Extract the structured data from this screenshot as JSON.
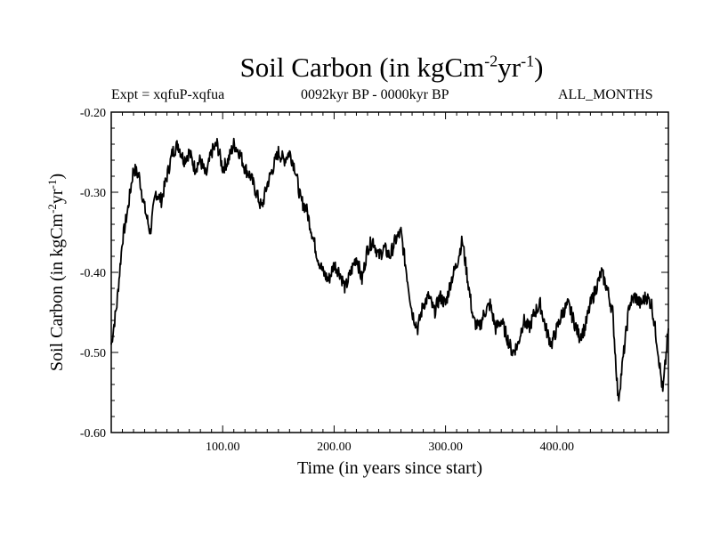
{
  "header": {
    "title_main": "Soil Carbon (in kgCm",
    "title_sup1": "-2",
    "title_mid": "yr",
    "title_sup2": "-1",
    "title_end": ")",
    "expt": "Expt = xqfuP-xqfua",
    "period": "0092kyr BP - 0000kyr BP",
    "months": "ALL_MONTHS"
  },
  "chart_data": {
    "type": "line",
    "title": "Soil Carbon (in kgCm-2yr-1)",
    "xlabel": "Time (in years since start)",
    "ylabel": "Soil Carbon (in kgCm-2yr-1)",
    "xlim": [
      0,
      500
    ],
    "ylim": [
      -0.6,
      -0.2
    ],
    "xticks": [
      100,
      200,
      300,
      400
    ],
    "xtick_labels": [
      "100.00",
      "200.00",
      "300.00",
      "400.00"
    ],
    "yticks": [
      -0.6,
      -0.5,
      -0.4,
      -0.3,
      -0.2
    ],
    "ytick_labels": [
      "-0.60",
      "-0.50",
      "-0.40",
      "-0.30",
      "-0.20"
    ],
    "series": [
      {
        "name": "xqfuP-xqfua",
        "x": [
          0,
          5,
          10,
          15,
          20,
          25,
          30,
          35,
          40,
          45,
          50,
          55,
          60,
          65,
          70,
          75,
          80,
          85,
          90,
          95,
          100,
          105,
          110,
          115,
          120,
          125,
          130,
          135,
          140,
          145,
          150,
          155,
          160,
          165,
          170,
          175,
          180,
          185,
          190,
          195,
          200,
          205,
          210,
          215,
          220,
          225,
          230,
          235,
          240,
          245,
          250,
          255,
          260,
          265,
          270,
          275,
          280,
          285,
          290,
          295,
          300,
          305,
          310,
          315,
          320,
          325,
          330,
          335,
          340,
          345,
          350,
          355,
          360,
          365,
          370,
          375,
          380,
          385,
          390,
          395,
          400,
          405,
          410,
          415,
          420,
          425,
          430,
          435,
          440,
          445,
          450,
          455,
          460,
          465,
          470,
          475,
          480,
          485,
          490,
          495,
          500
        ],
        "values": [
          -0.49,
          -0.44,
          -0.36,
          -0.32,
          -0.27,
          -0.28,
          -0.32,
          -0.35,
          -0.3,
          -0.31,
          -0.28,
          -0.25,
          -0.24,
          -0.26,
          -0.25,
          -0.27,
          -0.26,
          -0.28,
          -0.25,
          -0.24,
          -0.27,
          -0.26,
          -0.24,
          -0.25,
          -0.27,
          -0.28,
          -0.3,
          -0.32,
          -0.29,
          -0.27,
          -0.25,
          -0.26,
          -0.25,
          -0.27,
          -0.31,
          -0.32,
          -0.35,
          -0.38,
          -0.4,
          -0.41,
          -0.39,
          -0.4,
          -0.42,
          -0.4,
          -0.38,
          -0.41,
          -0.37,
          -0.36,
          -0.38,
          -0.37,
          -0.38,
          -0.36,
          -0.35,
          -0.4,
          -0.45,
          -0.47,
          -0.44,
          -0.43,
          -0.45,
          -0.43,
          -0.44,
          -0.41,
          -0.39,
          -0.36,
          -0.41,
          -0.46,
          -0.47,
          -0.45,
          -0.44,
          -0.47,
          -0.46,
          -0.48,
          -0.5,
          -0.49,
          -0.46,
          -0.47,
          -0.45,
          -0.44,
          -0.47,
          -0.49,
          -0.47,
          -0.45,
          -0.44,
          -0.46,
          -0.48,
          -0.47,
          -0.44,
          -0.42,
          -0.4,
          -0.42,
          -0.45,
          -0.56,
          -0.5,
          -0.44,
          -0.43,
          -0.44,
          -0.43,
          -0.44,
          -0.49,
          -0.55,
          -0.47
        ]
      }
    ]
  }
}
